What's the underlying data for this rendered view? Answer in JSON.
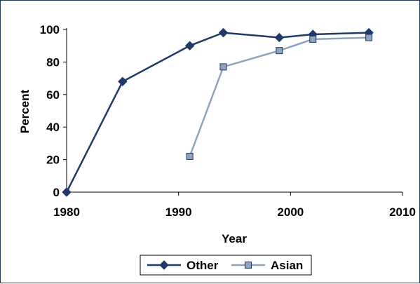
{
  "chart_data": {
    "type": "line",
    "title": "",
    "xlabel": "Year",
    "ylabel": "Percent",
    "xlim": [
      1980,
      2010
    ],
    "ylim": [
      0,
      100
    ],
    "xticks": [
      1980,
      1990,
      2000,
      2010
    ],
    "yticks": [
      0,
      20,
      40,
      60,
      80,
      100
    ],
    "grid": false,
    "legend_position": "bottom",
    "series": [
      {
        "name": "Other",
        "color": "#1f3b66",
        "marker": "diamond",
        "points": [
          {
            "x": 1980,
            "y": 0
          },
          {
            "x": 1985,
            "y": 68
          },
          {
            "x": 1991,
            "y": 90
          },
          {
            "x": 1994,
            "y": 98
          },
          {
            "x": 1999,
            "y": 95
          },
          {
            "x": 2002,
            "y": 97
          },
          {
            "x": 2007,
            "y": 98
          }
        ]
      },
      {
        "name": "Asian",
        "color": "#8fa3bd",
        "marker": "square",
        "points": [
          {
            "x": 1991,
            "y": 22
          },
          {
            "x": 1994,
            "y": 77
          },
          {
            "x": 1999,
            "y": 87
          },
          {
            "x": 2002,
            "y": 94
          },
          {
            "x": 2007,
            "y": 95
          }
        ]
      }
    ]
  }
}
